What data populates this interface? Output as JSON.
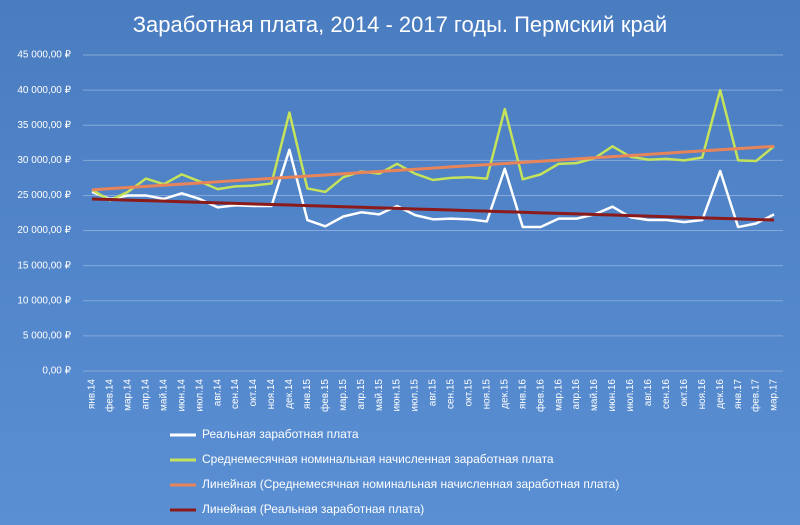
{
  "chart_data": {
    "type": "line",
    "title": "Заработная плата, 2014 - 2017 годы. Пермский край",
    "categories": [
      "янв.14",
      "фев.14",
      "мар.14",
      "апр.14",
      "май.14",
      "июн.14",
      "июл.14",
      "авг.14",
      "сен.14",
      "окт.14",
      "ноя.14",
      "дек.14",
      "янв.15",
      "фев.15",
      "мар.15",
      "апр.15",
      "май.15",
      "июн.15",
      "июл.15",
      "авг.15",
      "сен.15",
      "окт.15",
      "ноя.15",
      "дек.15",
      "янв.16",
      "фев.16",
      "мар.16",
      "апр.16",
      "май.16",
      "июн.16",
      "июл.16",
      "авг.16",
      "сен.16",
      "окт.16",
      "ноя.16",
      "дек.16",
      "янв.17",
      "фев.17",
      "мар.17"
    ],
    "series": [
      {
        "name": "Реальная заработная плата",
        "color": "#ffffff",
        "values": [
          25500,
          24500,
          25000,
          25000,
          24500,
          25300,
          24500,
          23300,
          23600,
          23500,
          23500,
          31500,
          21500,
          20600,
          22000,
          22600,
          22300,
          23500,
          22200,
          21600,
          21700,
          21600,
          21300,
          28800,
          20500,
          20500,
          21700,
          21700,
          22300,
          23400,
          21900,
          21500,
          21500,
          21200,
          21500,
          28500,
          20500,
          21000,
          22300
        ]
      },
      {
        "name": "Среднемесячная номинальная начисленная заработная плата",
        "color": "#c4e35a",
        "values": [
          25800,
          24300,
          25500,
          27400,
          26600,
          28000,
          27000,
          25900,
          26300,
          26400,
          26700,
          36800,
          26000,
          25500,
          27600,
          28400,
          28100,
          29500,
          28100,
          27200,
          27500,
          27600,
          27400,
          37300,
          27300,
          28000,
          29500,
          29600,
          30300,
          32000,
          30500,
          30100,
          30200,
          30000,
          30400,
          40000,
          30000,
          29900,
          32000
        ]
      },
      {
        "name": "Линейная (Среднемесячная номинальная начисленная заработная плата)",
        "color": "#e8845a",
        "values": [
          25800,
          25963,
          26126,
          26289,
          26452,
          26615,
          26778,
          26941,
          27104,
          27267,
          27430,
          27593,
          27756,
          27919,
          28082,
          28245,
          28408,
          28571,
          28734,
          28897,
          29060,
          29223,
          29386,
          29549,
          29712,
          29875,
          30038,
          30201,
          30364,
          30527,
          30690,
          30853,
          31016,
          31179,
          31342,
          31505,
          31668,
          31831,
          31994
        ]
      },
      {
        "name": "Линейная (Реальная заработная плата)",
        "color": "#8b1a1a",
        "values": [
          24500,
          24421,
          24342,
          24263,
          24184,
          24105,
          24026,
          23947,
          23868,
          23789,
          23710,
          23631,
          23552,
          23473,
          23394,
          23315,
          23236,
          23157,
          23078,
          22999,
          22920,
          22841,
          22762,
          22683,
          22604,
          22525,
          22446,
          22367,
          22288,
          22209,
          22130,
          22051,
          21972,
          21893,
          21814,
          21735,
          21656,
          21577,
          21498
        ]
      }
    ],
    "ylim": [
      0,
      45000
    ],
    "yticks": [
      {
        "value": 0,
        "label": "0,00 ₽"
      },
      {
        "value": 5000,
        "label": "5 000,00 ₽"
      },
      {
        "value": 10000,
        "label": "10 000,00 ₽"
      },
      {
        "value": 15000,
        "label": "15 000,00 ₽"
      },
      {
        "value": 20000,
        "label": "20 000,00 ₽"
      },
      {
        "value": 25000,
        "label": "25 000,00 ₽"
      },
      {
        "value": 30000,
        "label": "30 000,00 ₽"
      },
      {
        "value": 35000,
        "label": "35 000,00 ₽"
      },
      {
        "value": 40000,
        "label": "40 000,00 ₽"
      },
      {
        "value": 45000,
        "label": "45 000,00 ₽"
      }
    ],
    "grid": true
  }
}
